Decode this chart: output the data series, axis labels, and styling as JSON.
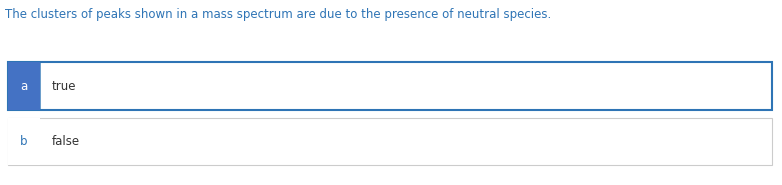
{
  "question_text": "The clusters of peaks shown in a mass spectrum are due to the presence of neutral species.",
  "question_color": "#2E74B5",
  "options": [
    {
      "label": "a",
      "text": "true",
      "selected": true
    },
    {
      "label": "b",
      "text": "false",
      "selected": false
    }
  ],
  "selected_bg": "#4472C4",
  "selected_label_color": "#ffffff",
  "unselected_bg": "#ffffff",
  "unselected_label_color": "#2E74B5",
  "border_selected": "#2E74B5",
  "border_unselected": "#CCCCCC",
  "text_color": "#333333",
  "question_fontsize": 8.5,
  "option_fontsize": 8.5,
  "label_fontsize": 8.5,
  "bg_color": "#ffffff",
  "fig_width": 7.82,
  "fig_height": 1.85
}
